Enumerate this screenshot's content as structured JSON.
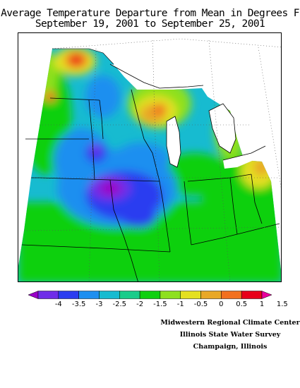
{
  "title": {
    "line1": "Average Temperature Departure from Mean in Degrees F",
    "line2": "September 19, 2001 to September 25, 2001"
  },
  "legend": {
    "ticks": [
      "-4",
      "-3.5",
      "-3",
      "-2.5",
      "-2",
      "-1.5",
      "-1",
      "-0.5",
      "0",
      "0.5",
      "1",
      "1.5"
    ],
    "colors": [
      "#9a00c8",
      "#6f2ee8",
      "#2b3cf0",
      "#1e8ff0",
      "#17bbd0",
      "#1acc8a",
      "#10d010",
      "#8ee01f",
      "#e4e020",
      "#e8a828",
      "#f27020",
      "#e8001a",
      "#e8009c"
    ]
  },
  "credits": {
    "line1": "Midwestern Regional Climate Center",
    "line2": "Illinois State Water Survey",
    "line3": "Champaign, Illinois"
  }
}
